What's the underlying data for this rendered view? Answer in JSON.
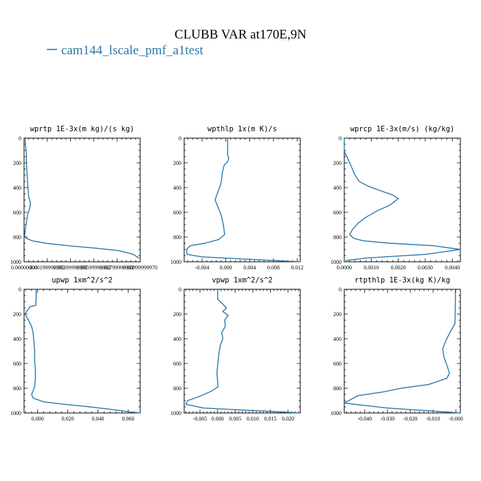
{
  "figure": {
    "title": "CLUBB VAR at170E,9N",
    "legend": [
      {
        "name": "cam144_lscale_pmf_a1test",
        "color": "#2a78a8"
      }
    ]
  },
  "chart_data": [
    {
      "type": "line",
      "title": "wprtp  1E-3x(m kg)/(s kg)",
      "xlim": [
        0.0,
        0.0099999997
      ],
      "ylim": [
        1000,
        0
      ],
      "x_ticks": [
        0.0,
        0.002,
        0.004,
        0.006,
        0.008
      ],
      "x_tick_labels": [
        "0.00000000",
        "0.00199999995",
        "0.00399999991",
        "0.00599999982",
        "0.00799999982"
      ],
      "x_tick_label_right": "0.00999999970",
      "y_ticks": [
        0,
        200,
        400,
        600,
        800,
        1000
      ],
      "series": [
        {
          "color": "#2a78a8",
          "x": [
            0.0001,
            0.00012,
            0.0002,
            0.0002,
            0.00025,
            0.0003,
            0.00035,
            0.0004,
            0.00055,
            0.0005,
            0.0003,
            0.0002,
            0.0001,
            5e-05,
            0.0002,
            0.0007,
            0.0019,
            0.0038,
            0.0062,
            0.0082,
            0.0094,
            0.0099
          ],
          "y": [
            0,
            50,
            120,
            200,
            280,
            350,
            420,
            480,
            520,
            560,
            620,
            680,
            740,
            790,
            810,
            830,
            850,
            870,
            890,
            910,
            940,
            970
          ]
        }
      ]
    },
    {
      "type": "line",
      "title": "wpthlp  1x(m K)/s",
      "xlim": [
        -0.007,
        0.0125
      ],
      "ylim": [
        1000,
        0
      ],
      "x_ticks": [
        -0.004,
        0.0,
        0.004,
        0.008,
        0.012
      ],
      "x_tick_labels": [
        "-0.004",
        "0.000",
        "0.004",
        "0.008",
        "0.012"
      ],
      "y_ticks": [
        0,
        200,
        400,
        600,
        800,
        1000
      ],
      "series": [
        {
          "color": "#2a78a8",
          "x": [
            0.0003,
            0.0003,
            0.0003,
            0.0005,
            0.0003,
            -0.0003,
            -0.0006,
            -0.0007,
            -0.0009,
            -0.0013,
            -0.0016,
            -0.0018,
            -0.0013,
            -0.0008,
            -0.0005,
            -0.0003,
            -0.0002,
            -0.0012,
            -0.0035,
            -0.006,
            -0.0066,
            -0.0065,
            -0.004,
            0.004,
            0.0125
          ],
          "y": [
            0,
            80,
            140,
            160,
            190,
            220,
            280,
            330,
            380,
            430,
            470,
            500,
            560,
            620,
            680,
            740,
            780,
            820,
            850,
            870,
            900,
            940,
            960,
            980,
            1000
          ]
        }
      ]
    },
    {
      "type": "line",
      "title": "wprcp  1E-3x(m/s) (kg/kg)",
      "xlim": [
        0.0,
        0.0043
      ],
      "ylim": [
        1000,
        0
      ],
      "x_ticks": [
        0.0,
        0.001,
        0.002,
        0.003,
        0.004
      ],
      "x_tick_labels": [
        "0.0000",
        "0.0010",
        "0.0020",
        "0.0030",
        "0.0040"
      ],
      "y_ticks": [
        0,
        200,
        400,
        600,
        800,
        1000
      ],
      "series": [
        {
          "color": "#2a78a8",
          "x": [
            0.0,
            0.0,
            2e-05,
            0.0001,
            0.0002,
            0.0003,
            0.0004,
            0.00055,
            0.0009,
            0.0014,
            0.0018,
            0.002,
            0.0017,
            0.0012,
            0.0008,
            0.0005,
            0.0003,
            0.0002,
            0.00035,
            0.0007,
            0.0017,
            0.0033,
            0.0043,
            0.003,
            0.0008,
            5e-05
          ],
          "y": [
            0,
            80,
            120,
            150,
            200,
            250,
            300,
            350,
            390,
            430,
            460,
            490,
            540,
            590,
            640,
            690,
            740,
            780,
            810,
            830,
            850,
            870,
            900,
            940,
            970,
            990
          ]
        }
      ]
    },
    {
      "type": "line",
      "title": "upwp  1xm^2/s^2",
      "xlim": [
        -0.009,
        0.068
      ],
      "ylim": [
        1000,
        0
      ],
      "x_ticks": [
        0.0,
        0.02,
        0.04,
        0.06
      ],
      "x_tick_labels": [
        "0.000",
        "0.020",
        "0.040",
        "0.060"
      ],
      "y_ticks": [
        0,
        200,
        400,
        600,
        800,
        1000
      ],
      "series": [
        {
          "color": "#2a78a8",
          "x": [
            -0.001,
            -0.001,
            -0.0012,
            -0.005,
            -0.0085,
            -0.006,
            -0.004,
            -0.003,
            -0.0025,
            -0.002,
            -0.002,
            -0.0015,
            -0.0015,
            -0.002,
            -0.004,
            -0.003,
            0.004,
            0.018,
            0.034,
            0.048,
            0.06,
            0.068
          ],
          "y": [
            0,
            80,
            130,
            140,
            200,
            250,
            300,
            350,
            420,
            500,
            580,
            650,
            720,
            790,
            850,
            880,
            910,
            930,
            950,
            970,
            990,
            1000
          ]
        }
      ]
    },
    {
      "type": "line",
      "title": "vpwp  1xm^2/s^2",
      "xlim": [
        -0.0095,
        0.0235
      ],
      "ylim": [
        1000,
        0
      ],
      "x_ticks": [
        -0.005,
        0.0,
        0.005,
        0.01,
        0.015,
        0.02
      ],
      "x_tick_labels": [
        "-0.005",
        "0.000",
        "0.005",
        "0.010",
        "0.015",
        "0.020"
      ],
      "y_ticks": [
        0,
        200,
        400,
        600,
        800,
        1000
      ],
      "series": [
        {
          "color": "#2a78a8",
          "x": [
            0.0,
            0.0,
            0.0015,
            0.0025,
            0.0015,
            0.003,
            0.002,
            0.0022,
            0.0012,
            0.0015,
            0.0008,
            0.0005,
            0.0002,
            0.0,
            -0.0002,
            0.0,
            0.0001,
            -0.0022,
            -0.0055,
            -0.0085,
            -0.009,
            -0.004,
            0.0235
          ],
          "y": [
            0,
            80,
            120,
            150,
            180,
            210,
            250,
            300,
            350,
            400,
            450,
            500,
            560,
            620,
            680,
            740,
            790,
            830,
            870,
            900,
            930,
            960,
            1000
          ]
        }
      ]
    },
    {
      "type": "line",
      "title": "rtpthlp  1E-3x(kg K)/kg",
      "xlim": [
        -0.049,
        0.002
      ],
      "ylim": [
        1000,
        0
      ],
      "x_ticks": [
        -0.04,
        -0.03,
        -0.02,
        -0.01,
        0.0
      ],
      "x_tick_labels": [
        "-0.040",
        "-0.030",
        "-0.020",
        "-0.010",
        "-0.000"
      ],
      "y_ticks": [
        0,
        200,
        400,
        600,
        800,
        1000
      ],
      "series": [
        {
          "color": "#2a78a8",
          "x": [
            -0.0002,
            -0.0002,
            -0.0003,
            -0.0004,
            -0.002,
            -0.004,
            -0.0058,
            -0.0052,
            -0.0038,
            -0.0028,
            -0.004,
            -0.012,
            -0.024,
            -0.032,
            -0.043,
            -0.049,
            -0.03,
            0.002
          ],
          "y": [
            0,
            100,
            200,
            280,
            330,
            400,
            480,
            550,
            620,
            680,
            720,
            770,
            800,
            830,
            860,
            920,
            960,
            1000
          ]
        }
      ]
    }
  ]
}
